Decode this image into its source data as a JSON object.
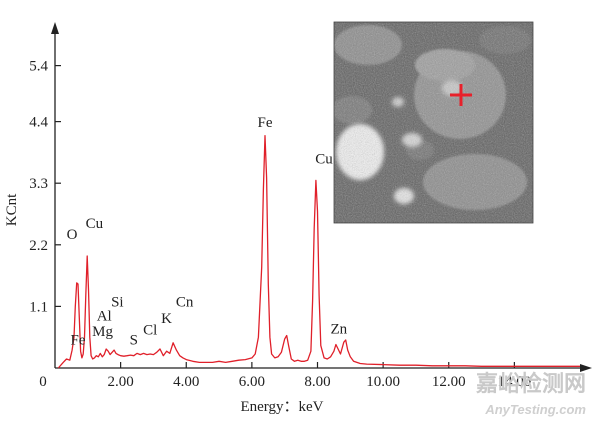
{
  "chart_data": {
    "type": "line",
    "title": "",
    "xlabel": "Energy：keV",
    "ylabel": "KCnt",
    "xlim": [
      0,
      16
    ],
    "ylim": [
      0,
      6.0
    ],
    "x_ticks": [
      {
        "value": 0,
        "label": "0"
      },
      {
        "value": 2,
        "label": "2.00"
      },
      {
        "value": 4,
        "label": "4.00"
      },
      {
        "value": 6,
        "label": "6.00"
      },
      {
        "value": 8,
        "label": "8.00"
      },
      {
        "value": 10,
        "label": "10.00"
      },
      {
        "value": 12,
        "label": "12.00"
      },
      {
        "value": 14,
        "label": "14.00"
      }
    ],
    "y_ticks": [
      {
        "value": 1.1,
        "label": "1.1"
      },
      {
        "value": 2.2,
        "label": "2.2"
      },
      {
        "value": 3.3,
        "label": "3.3"
      },
      {
        "value": 4.4,
        "label": "4.4"
      },
      {
        "value": 5.4,
        "label": "5.4"
      }
    ],
    "series_color": "#e0202a",
    "spectrum": {
      "x": [
        0.1,
        0.25,
        0.35,
        0.45,
        0.52,
        0.58,
        0.62,
        0.66,
        0.7,
        0.74,
        0.78,
        0.82,
        0.86,
        0.9,
        0.94,
        0.98,
        1.02,
        1.06,
        1.1,
        1.15,
        1.2,
        1.26,
        1.32,
        1.38,
        1.44,
        1.5,
        1.56,
        1.62,
        1.68,
        1.74,
        1.8,
        1.86,
        1.92,
        2.0,
        2.1,
        2.2,
        2.3,
        2.4,
        2.5,
        2.6,
        2.7,
        2.8,
        2.9,
        3.0,
        3.1,
        3.2,
        3.3,
        3.4,
        3.5,
        3.6,
        3.7,
        3.8,
        3.9,
        4.0,
        4.2,
        4.4,
        4.6,
        4.8,
        5.0,
        5.2,
        5.4,
        5.6,
        5.8,
        6.0,
        6.1,
        6.2,
        6.3,
        6.35,
        6.4,
        6.45,
        6.5,
        6.55,
        6.6,
        6.7,
        6.8,
        6.9,
        7.0,
        7.06,
        7.12,
        7.2,
        7.3,
        7.4,
        7.5,
        7.6,
        7.7,
        7.8,
        7.85,
        7.9,
        7.95,
        8.0,
        8.05,
        8.1,
        8.2,
        8.3,
        8.4,
        8.5,
        8.56,
        8.62,
        8.7,
        8.8,
        8.86,
        8.92,
        9.0,
        9.1,
        9.3,
        9.5,
        10.0,
        10.5,
        11.0,
        11.5,
        12.0,
        12.5,
        13.0,
        13.5,
        14.0,
        14.5,
        15.0,
        15.5,
        16.0
      ],
      "y": [
        0.0,
        0.1,
        0.16,
        0.14,
        0.32,
        0.55,
        1.1,
        1.52,
        1.5,
        0.9,
        0.3,
        0.18,
        0.25,
        0.55,
        1.3,
        2.0,
        1.4,
        0.55,
        0.22,
        0.16,
        0.18,
        0.22,
        0.2,
        0.26,
        0.2,
        0.24,
        0.34,
        0.3,
        0.24,
        0.28,
        0.32,
        0.26,
        0.24,
        0.22,
        0.21,
        0.22,
        0.23,
        0.22,
        0.26,
        0.24,
        0.26,
        0.24,
        0.25,
        0.24,
        0.28,
        0.34,
        0.22,
        0.3,
        0.26,
        0.45,
        0.32,
        0.22,
        0.18,
        0.15,
        0.12,
        0.1,
        0.1,
        0.1,
        0.12,
        0.1,
        0.12,
        0.14,
        0.15,
        0.18,
        0.25,
        0.55,
        1.8,
        3.2,
        4.15,
        3.4,
        1.5,
        0.55,
        0.25,
        0.18,
        0.2,
        0.28,
        0.52,
        0.58,
        0.4,
        0.16,
        0.12,
        0.14,
        0.12,
        0.12,
        0.14,
        0.3,
        1.2,
        2.5,
        3.35,
        2.8,
        1.3,
        0.4,
        0.18,
        0.16,
        0.2,
        0.3,
        0.42,
        0.35,
        0.25,
        0.46,
        0.5,
        0.32,
        0.2,
        0.12,
        0.08,
        0.07,
        0.06,
        0.05,
        0.05,
        0.04,
        0.04,
        0.04,
        0.03,
        0.03,
        0.03,
        0.03,
        0.03,
        0.03,
        0.03
      ]
    },
    "peak_labels": [
      {
        "text": "O",
        "x": 0.52,
        "y": 2.3
      },
      {
        "text": "Cu",
        "x": 1.2,
        "y": 2.5
      },
      {
        "text": "Fe",
        "x": 0.7,
        "y": 0.42
      },
      {
        "text": "Mg",
        "x": 1.45,
        "y": 0.57
      },
      {
        "text": "Al",
        "x": 1.5,
        "y": 0.85
      },
      {
        "text": "Si",
        "x": 1.9,
        "y": 1.1
      },
      {
        "text": "S",
        "x": 2.4,
        "y": 0.42
      },
      {
        "text": "Cl",
        "x": 2.9,
        "y": 0.6
      },
      {
        "text": "K",
        "x": 3.4,
        "y": 0.8
      },
      {
        "text": "Cn",
        "x": 3.95,
        "y": 1.1
      },
      {
        "text": "Fe",
        "x": 6.4,
        "y": 4.3
      },
      {
        "text": "Cu",
        "x": 8.2,
        "y": 3.65
      },
      {
        "text": "Zn",
        "x": 8.65,
        "y": 0.62
      }
    ],
    "inset": {
      "type": "SEM micrograph",
      "marker_color": "#e8202a"
    },
    "legend": "none",
    "grid": false
  },
  "watermark": {
    "cn": "嘉峪检测网",
    "en": "AnyTesting.com"
  }
}
